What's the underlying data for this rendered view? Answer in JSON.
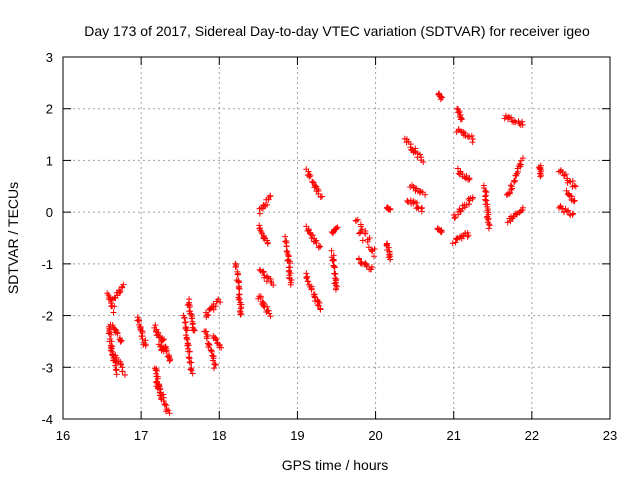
{
  "chart_data": {
    "type": "scatter",
    "title": "Day 173 of 2017, Sidereal Day-to-day VTEC variation (SDTVAR) for receiver igeo",
    "xlabel": "GPS time / hours",
    "ylabel": "SDTVAR / TECUs",
    "xlim": [
      16,
      23
    ],
    "ylim": [
      -4,
      3
    ],
    "xticks": [
      "16",
      "17",
      "18",
      "19",
      "20",
      "21",
      "22",
      "23"
    ],
    "yticks": [
      "-4",
      "-3",
      "-2",
      "-1",
      "0",
      "1",
      "2",
      "3"
    ],
    "grid": true,
    "marker": "+",
    "color": "#ff0000",
    "tracks": [
      {
        "x0": 16.58,
        "x1": 16.65,
        "y0": -1.6,
        "y1": -1.9,
        "w": 0.12
      },
      {
        "x0": 16.58,
        "x1": 16.68,
        "y0": -2.2,
        "y1": -3.1,
        "w": 0.15
      },
      {
        "x0": 16.62,
        "x1": 16.78,
        "y0": -2.7,
        "y1": -3.1,
        "w": 0.12
      },
      {
        "x0": 16.62,
        "x1": 16.76,
        "y0": -2.2,
        "y1": -2.5,
        "w": 0.12
      },
      {
        "x0": 16.65,
        "x1": 16.76,
        "y0": -1.7,
        "y1": -1.45,
        "w": 0.1
      },
      {
        "x0": 16.95,
        "x1": 17.05,
        "y0": -2.0,
        "y1": -2.6,
        "w": 0.12
      },
      {
        "x0": 17.18,
        "x1": 17.28,
        "y0": -2.2,
        "y1": -2.7,
        "w": 0.15
      },
      {
        "x0": 17.2,
        "x1": 17.35,
        "y0": -3.3,
        "y1": -3.9,
        "w": 0.1
      },
      {
        "x0": 17.18,
        "x1": 17.25,
        "y0": -3.0,
        "y1": -3.6,
        "w": 0.08
      },
      {
        "x0": 17.25,
        "x1": 17.38,
        "y0": -2.4,
        "y1": -2.9,
        "w": 0.12
      },
      {
        "x0": 17.55,
        "x1": 17.65,
        "y0": -2.0,
        "y1": -3.1,
        "w": 0.1
      },
      {
        "x0": 17.6,
        "x1": 17.68,
        "y0": -1.7,
        "y1": -2.3,
        "w": 0.08
      },
      {
        "x0": 17.82,
        "x1": 17.95,
        "y0": -2.3,
        "y1": -3.0,
        "w": 0.12
      },
      {
        "x0": 17.82,
        "x1": 18.0,
        "y0": -2.0,
        "y1": -1.7,
        "w": 0.12
      },
      {
        "x0": 17.92,
        "x1": 18.02,
        "y0": -2.4,
        "y1": -2.6,
        "w": 0.08
      },
      {
        "x0": 18.22,
        "x1": 18.28,
        "y0": -1.0,
        "y1": -2.0,
        "w": 0.1
      },
      {
        "x0": 18.5,
        "x1": 18.65,
        "y0": -1.6,
        "y1": -2.0,
        "w": 0.12
      },
      {
        "x0": 18.52,
        "x1": 18.68,
        "y0": -1.1,
        "y1": -1.4,
        "w": 0.1
      },
      {
        "x0": 18.5,
        "x1": 18.62,
        "y0": -0.3,
        "y1": -0.6,
        "w": 0.1
      },
      {
        "x0": 18.52,
        "x1": 18.65,
        "y0": 0.0,
        "y1": 0.3,
        "w": 0.1
      },
      {
        "x0": 18.85,
        "x1": 18.92,
        "y0": -0.5,
        "y1": -1.4,
        "w": 0.1
      },
      {
        "x0": 19.1,
        "x1": 19.3,
        "y0": -1.2,
        "y1": -1.9,
        "w": 0.15
      },
      {
        "x0": 19.12,
        "x1": 19.28,
        "y0": -0.3,
        "y1": -0.7,
        "w": 0.12
      },
      {
        "x0": 19.12,
        "x1": 19.3,
        "y0": 0.8,
        "y1": 0.3,
        "w": 0.12
      },
      {
        "x0": 19.45,
        "x1": 19.5,
        "y0": -0.8,
        "y1": -1.5,
        "w": 0.12
      },
      {
        "x0": 19.45,
        "x1": 19.5,
        "y0": -0.4,
        "y1": -0.3,
        "w": 0.05
      },
      {
        "x0": 19.75,
        "x1": 19.98,
        "y0": -0.2,
        "y1": -0.8,
        "w": 0.3
      },
      {
        "x0": 19.78,
        "x1": 19.95,
        "y0": -0.9,
        "y1": -1.1,
        "w": 0.12
      },
      {
        "x0": 20.15,
        "x1": 20.18,
        "y0": -0.6,
        "y1": -0.9,
        "w": 0.05
      },
      {
        "x0": 20.15,
        "x1": 20.18,
        "y0": 0.1,
        "y1": 0.05,
        "w": 0.03
      },
      {
        "x0": 20.38,
        "x1": 20.6,
        "y0": 1.4,
        "y1": 1.0,
        "w": 0.12
      },
      {
        "x0": 20.4,
        "x1": 20.6,
        "y0": 0.25,
        "y1": 0.05,
        "w": 0.1
      },
      {
        "x0": 20.45,
        "x1": 20.62,
        "y0": 0.5,
        "y1": 0.35,
        "w": 0.08
      },
      {
        "x0": 20.8,
        "x1": 20.85,
        "y0": 2.3,
        "y1": 2.2,
        "w": 0.04
      },
      {
        "x0": 20.8,
        "x1": 20.85,
        "y0": -0.3,
        "y1": -0.4,
        "w": 0.04
      },
      {
        "x0": 21.0,
        "x1": 21.2,
        "y0": -0.6,
        "y1": -0.4,
        "w": 0.1
      },
      {
        "x0": 21.05,
        "x1": 21.25,
        "y0": 1.6,
        "y1": 1.4,
        "w": 0.1
      },
      {
        "x0": 21.05,
        "x1": 21.2,
        "y0": 0.8,
        "y1": 0.6,
        "w": 0.1
      },
      {
        "x0": 21.0,
        "x1": 21.25,
        "y0": -0.1,
        "y1": 0.3,
        "w": 0.12
      },
      {
        "x0": 21.05,
        "x1": 21.1,
        "y0": 2.0,
        "y1": 1.8,
        "w": 0.04
      },
      {
        "x0": 21.4,
        "x1": 21.45,
        "y0": 0.5,
        "y1": -0.3,
        "w": 0.05
      },
      {
        "x0": 21.65,
        "x1": 21.88,
        "y0": 1.85,
        "y1": 1.7,
        "w": 0.08
      },
      {
        "x0": 21.68,
        "x1": 21.88,
        "y0": 0.3,
        "y1": 1.0,
        "w": 0.1
      },
      {
        "x0": 21.7,
        "x1": 21.88,
        "y0": -0.2,
        "y1": 0.1,
        "w": 0.08
      },
      {
        "x0": 22.1,
        "x1": 22.12,
        "y0": 0.9,
        "y1": 0.7,
        "w": 0.03
      },
      {
        "x0": 22.35,
        "x1": 22.55,
        "y0": 0.8,
        "y1": 0.5,
        "w": 0.12
      },
      {
        "x0": 22.35,
        "x1": 22.52,
        "y0": 0.1,
        "y1": -0.05,
        "w": 0.1
      },
      {
        "x0": 22.45,
        "x1": 22.55,
        "y0": 0.4,
        "y1": 0.2,
        "w": 0.06
      }
    ]
  }
}
